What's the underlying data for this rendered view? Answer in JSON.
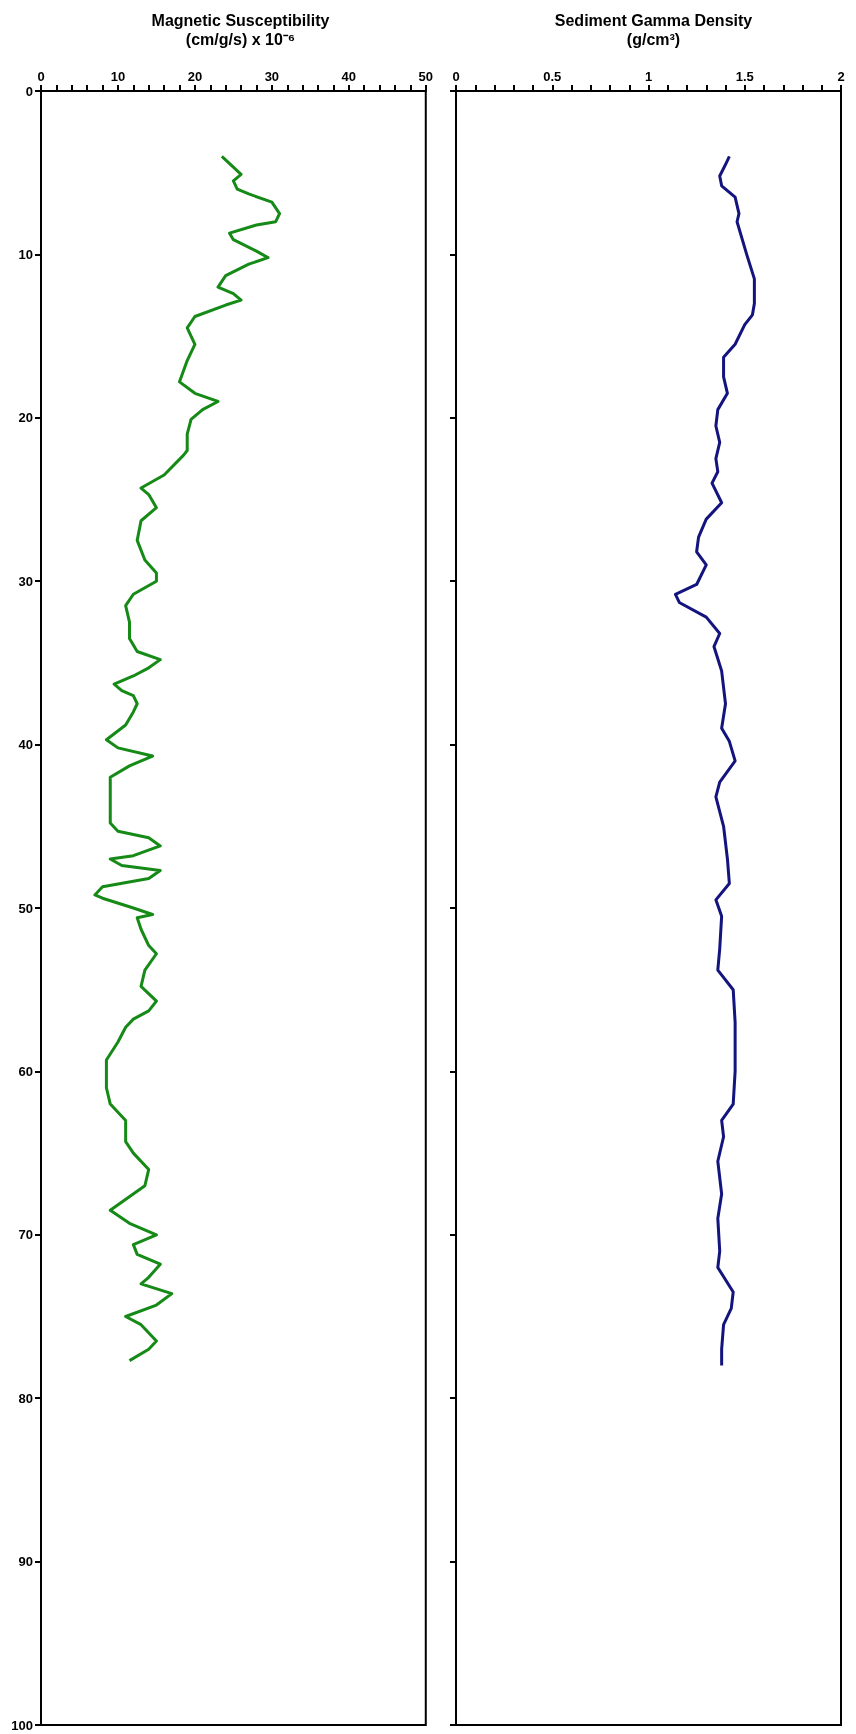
{
  "chart_data": [
    {
      "type": "line",
      "title": "Magnetic Susceptibility\n(cm/g/s) x 10⁻⁶",
      "marker": "none",
      "line_style": "solid",
      "xlim": [
        0,
        50
      ],
      "ylim": [
        100,
        0
      ],
      "xticks": [
        0,
        {
          "value": 2,
          "label": null
        },
        {
          "value": 4,
          "label": null
        },
        {
          "value": 6,
          "label": null
        },
        {
          "value": 8,
          "label": null
        },
        10,
        {
          "value": 12,
          "label": null
        },
        {
          "value": 14,
          "label": null
        },
        {
          "value": 16,
          "label": null
        },
        {
          "value": 18,
          "label": null
        },
        20,
        {
          "value": 22,
          "label": null
        },
        {
          "value": 24,
          "label": null
        },
        {
          "value": 26,
          "label": null
        },
        {
          "value": 28,
          "label": null
        },
        30,
        {
          "value": 32,
          "label": null
        },
        {
          "value": 34,
          "label": null
        },
        {
          "value": 36,
          "label": null
        },
        {
          "value": 38,
          "label": null
        },
        40,
        {
          "value": 42,
          "label": null
        },
        {
          "value": 44,
          "label": null
        },
        {
          "value": 46,
          "label": null
        },
        {
          "value": 48,
          "label": null
        },
        50
      ],
      "yticks": [
        0,
        10,
        20,
        30,
        40,
        50,
        60,
        70,
        80,
        90,
        100
      ],
      "series": [
        {
          "color": "#168a16",
          "x": [
            23.5,
            26,
            25,
            25.5,
            27,
            30,
            31,
            30.5,
            28,
            24.5,
            25,
            28,
            29.5,
            27,
            24,
            23,
            25,
            26,
            24,
            20,
            19,
            20,
            19,
            18,
            20,
            23,
            21,
            19.5,
            19,
            19,
            18.5,
            16,
            13,
            14,
            15,
            13,
            12.5,
            13.5,
            15,
            15,
            12,
            11,
            11.5,
            11.5,
            12.5,
            15.5,
            14,
            12,
            9.5,
            10.5,
            12,
            12.5,
            12,
            11,
            8.5,
            10,
            14.5,
            11.5,
            9,
            9,
            9,
            10,
            14,
            15.5,
            12,
            9,
            10.5,
            15.5,
            14,
            8,
            7,
            8,
            12,
            14.5,
            12.5,
            13,
            14,
            15,
            13.5,
            13,
            15,
            14,
            12,
            11,
            10,
            8.5,
            8.5,
            9,
            11,
            11,
            12,
            14,
            13.5,
            9,
            11.5,
            15,
            12,
            12.5,
            15.5,
            14,
            13,
            17,
            15,
            11,
            13,
            15,
            14,
            11.5
          ],
          "values": [
            4,
            5.1,
            5.5,
            6,
            6.3,
            6.8,
            7.5,
            8,
            8.2,
            8.7,
            9.1,
            9.8,
            10.2,
            10.6,
            11.3,
            12,
            12.4,
            12.8,
            13.1,
            13.8,
            14.5,
            15.5,
            16.5,
            17.8,
            18.5,
            19,
            19.5,
            20.1,
            21,
            22,
            22.3,
            23.5,
            24.3,
            24.7,
            25.5,
            26.3,
            27.5,
            28.7,
            29.5,
            30,
            30.8,
            31.5,
            32.5,
            33.5,
            34.3,
            34.8,
            35.3,
            35.8,
            36.3,
            36.7,
            37,
            37.5,
            38,
            38.8,
            39.7,
            40.2,
            40.7,
            41.3,
            42,
            43.5,
            44.8,
            45.3,
            45.7,
            46.2,
            46.8,
            47,
            47.4,
            47.7,
            48.2,
            48.7,
            49.2,
            49.4,
            50,
            50.4,
            50.6,
            51.3,
            52.3,
            52.8,
            53.8,
            54.8,
            55.7,
            56.3,
            56.8,
            57.3,
            58.2,
            59.3,
            61,
            62,
            63,
            64.3,
            65,
            66,
            67,
            68.5,
            69.3,
            70,
            70.6,
            71.2,
            71.8,
            72.6,
            73,
            73.6,
            74.3,
            75,
            75.5,
            76.5,
            77,
            77.7
          ]
        }
      ]
    },
    {
      "type": "line",
      "title": "Sediment Gamma Density\n(g/cm³)",
      "marker": "none",
      "line_style": "solid",
      "tick_labels": "x",
      "xlim": [
        0,
        2
      ],
      "ylim": [
        100,
        0
      ],
      "xticks": [
        0,
        {
          "value": 0.1,
          "label": null
        },
        {
          "value": 0.2,
          "label": null
        },
        {
          "value": 0.3,
          "label": null
        },
        {
          "value": 0.4,
          "label": null
        },
        0.5,
        {
          "value": 0.6,
          "label": null
        },
        {
          "value": 0.7,
          "label": null
        },
        {
          "value": 0.8,
          "label": null
        },
        {
          "value": 0.9,
          "label": null
        },
        1,
        {
          "value": 1.1,
          "label": null
        },
        {
          "value": 1.2,
          "label": null
        },
        {
          "value": 1.3,
          "label": null
        },
        {
          "value": 1.4,
          "label": null
        },
        1.5,
        {
          "value": 1.6,
          "label": null
        },
        {
          "value": 1.7,
          "label": null
        },
        {
          "value": 1.8,
          "label": null
        },
        {
          "value": 1.9,
          "label": null
        },
        2
      ],
      "yticks": [
        0,
        10,
        20,
        30,
        40,
        50,
        60,
        70,
        80,
        90,
        100
      ],
      "series": [
        {
          "color": "#14147e",
          "x": [
            1.42,
            1.4,
            1.37,
            1.38,
            1.45,
            1.47,
            1.46,
            1.51,
            1.55,
            1.55,
            1.54,
            1.5,
            1.45,
            1.39,
            1.39,
            1.41,
            1.36,
            1.35,
            1.37,
            1.35,
            1.36,
            1.33,
            1.38,
            1.3,
            1.26,
            1.25,
            1.3,
            1.25,
            1.14,
            1.16,
            1.3,
            1.37,
            1.34,
            1.38,
            1.4,
            1.38,
            1.42,
            1.45,
            1.37,
            1.35,
            1.39,
            1.41,
            1.42,
            1.35,
            1.38,
            1.37,
            1.36,
            1.44,
            1.45,
            1.45,
            1.44,
            1.38,
            1.39,
            1.36,
            1.38,
            1.36,
            1.37,
            1.36,
            1.44,
            1.43,
            1.39,
            1.38,
            1.38
          ],
          "values": [
            4,
            4.5,
            5.2,
            5.8,
            6.5,
            7.5,
            8,
            10,
            11.5,
            13,
            13.7,
            14.3,
            15.5,
            16.3,
            17.5,
            18.5,
            19.5,
            20.5,
            21.5,
            22.5,
            23.3,
            24,
            25.2,
            26.2,
            27.3,
            28.2,
            29,
            30.2,
            30.8,
            31.3,
            32.2,
            33.2,
            34,
            35.5,
            37.5,
            39,
            39.8,
            41,
            42.3,
            43.2,
            45,
            47,
            48.5,
            49.5,
            50.5,
            52.5,
            53.8,
            55,
            57,
            60,
            62,
            63,
            64,
            65.5,
            67.5,
            69,
            71,
            72,
            73.5,
            74.5,
            75.5,
            77,
            78
          ]
        }
      ]
    }
  ]
}
